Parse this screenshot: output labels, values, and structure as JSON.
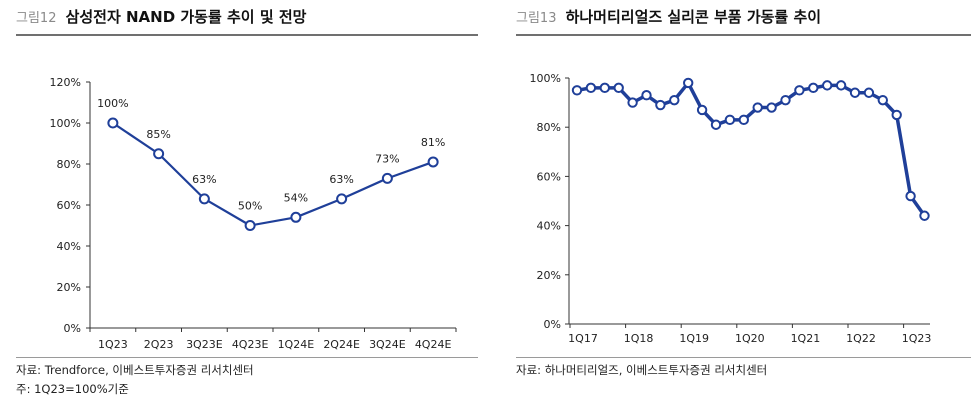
{
  "left_panel": {
    "figure_number": "그림12",
    "title": "삼성전자 NAND 가동률 추이 및 전망",
    "source": "자료: Trendforce, 이베스트투자증권 리서치센터",
    "note": "주: 1Q23=100%기준"
  },
  "right_panel": {
    "figure_number": "그림13",
    "title": "하나머티리얼즈 실리콘 부품 가동률 추이",
    "source": "자료: 하나머티리얼즈, 이베스트투자증권 리서치센터"
  },
  "colors": {
    "series": "#1f3f99",
    "marker_fill": "#ffffff",
    "axis": "#333333"
  },
  "chart_data": [
    {
      "type": "line",
      "categories": [
        "1Q23",
        "2Q23",
        "3Q23E",
        "4Q23E",
        "1Q24E",
        "2Q24E",
        "3Q24E",
        "4Q24E"
      ],
      "values": [
        100,
        85,
        63,
        50,
        54,
        63,
        73,
        81
      ],
      "data_labels": [
        "100%",
        "85%",
        "63%",
        "50%",
        "54%",
        "63%",
        "73%",
        "81%"
      ],
      "ylim": [
        0,
        120
      ],
      "yticks": [
        0,
        20,
        40,
        60,
        80,
        100,
        120
      ],
      "ytick_labels": [
        "0%",
        "20%",
        "40%",
        "60%",
        "80%",
        "100%",
        "120%"
      ],
      "grid": false,
      "markers": "hollow-circle"
    },
    {
      "type": "line",
      "x_tick_labels": [
        "1Q17",
        "1Q18",
        "1Q19",
        "1Q20",
        "1Q21",
        "1Q22",
        "1Q23"
      ],
      "x_tick_positions": [
        0,
        4,
        8,
        12,
        16,
        20,
        24
      ],
      "values": [
        95,
        96,
        96,
        96,
        90,
        93,
        89,
        91,
        98,
        87,
        81,
        83,
        83,
        88,
        88,
        91,
        95,
        96,
        97,
        97,
        94,
        94,
        91,
        85,
        52,
        44
      ],
      "ylim": [
        0,
        100
      ],
      "yticks": [
        0,
        20,
        40,
        60,
        80,
        100
      ],
      "ytick_labels": [
        "0%",
        "20%",
        "40%",
        "60%",
        "80%",
        "100%"
      ],
      "grid": false,
      "markers": "hollow-circle"
    }
  ]
}
